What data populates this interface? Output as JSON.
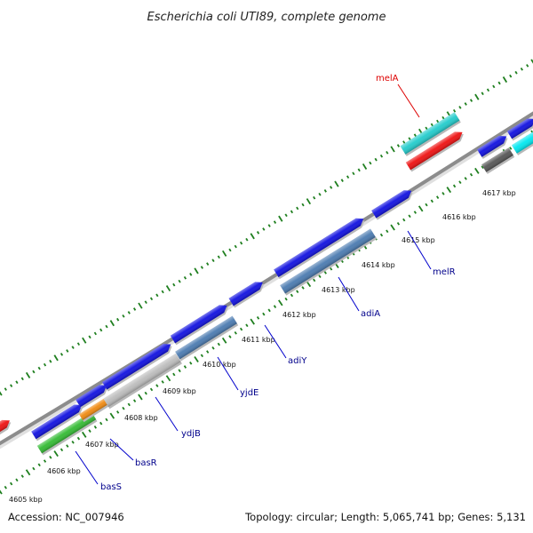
{
  "title": "Escherichia coli UTI89, complete genome",
  "footer": {
    "accession": "Accession: NC_007946",
    "topology": "Topology: circular; Length: 5,065,741 bp; Genes: 5,131"
  },
  "colors": {
    "backbone": "#8c8c8c",
    "tick": "#1f7f1f",
    "label_line": "#0000cc",
    "gene_label": "#00008b",
    "highlight": "#dd0000"
  },
  "kbp_labels": [
    "4605 kbp",
    "4606 kbp",
    "4607 kbp",
    "4608 kbp",
    "4609 kbp",
    "4610 kbp",
    "4611 kbp",
    "4612 kbp",
    "4613 kbp",
    "4614 kbp",
    "4615 kbp",
    "4616 kbp",
    "4617 kbp"
  ],
  "gene_labels": [
    "basS",
    "basR",
    "ydjB",
    "yjdE",
    "adiY",
    "adiA",
    "melR",
    "melA"
  ],
  "feature_colors": {
    "blue": "#1010e0",
    "steel": "#4a7ab0",
    "gray": "#bcbcbc",
    "green": "#33bb33",
    "orange": "#f08a10",
    "cyan": "#22cccc",
    "red": "#ee1111",
    "darkgray": "#555555",
    "aqua": "#00e8f0"
  }
}
